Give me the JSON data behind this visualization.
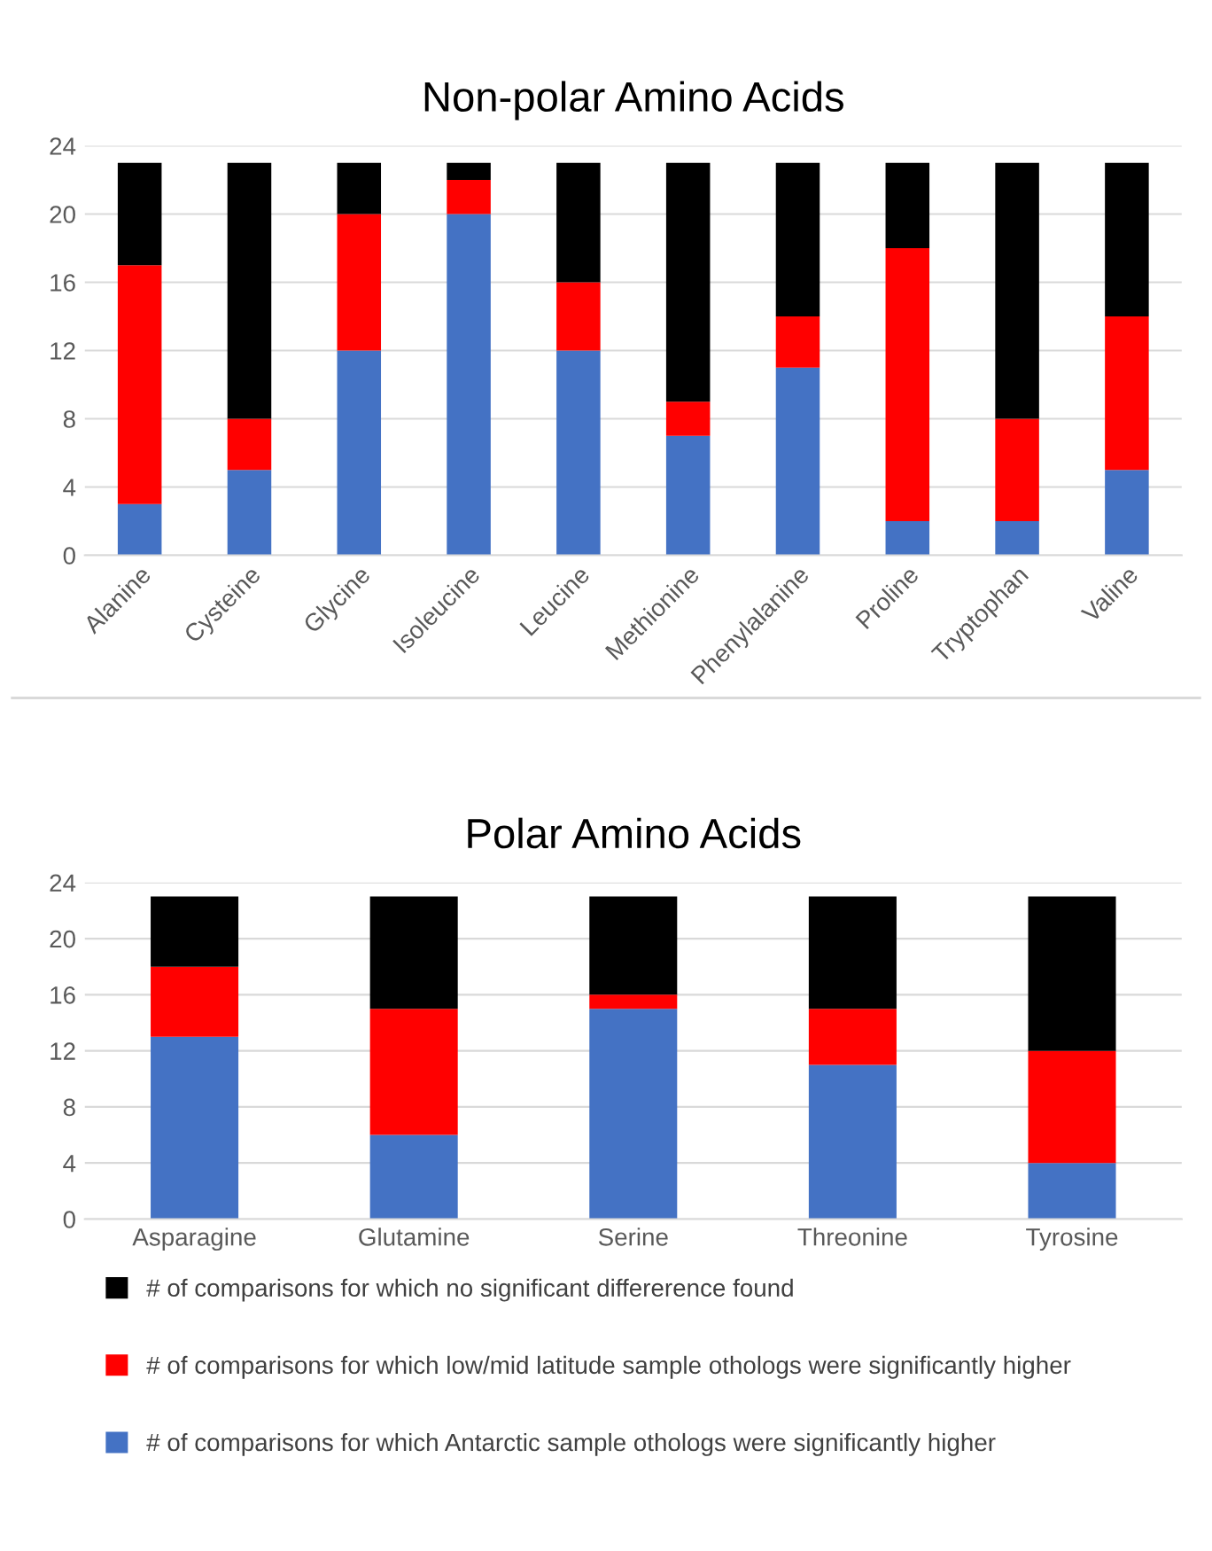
{
  "chart_data": [
    {
      "type": "bar",
      "title": "Non-polar Amino Acids",
      "stacked": true,
      "grid": "y",
      "legend": false,
      "categories": [
        "Alanine",
        "Cysteine",
        "Glycine",
        "Isoleucine",
        "Leucine",
        "Methionine",
        "Phenylalanine",
        "Proline",
        "Tryptophan",
        "Valine"
      ],
      "ylim": [
        0,
        24
      ],
      "yticks": [
        0,
        4,
        8,
        12,
        16,
        20,
        24
      ],
      "series": [
        {
          "color": "#4472c4",
          "values": [
            3,
            5,
            12,
            20,
            12,
            7,
            11,
            2,
            2,
            5
          ]
        },
        {
          "color": "#ff0000",
          "values": [
            14,
            3,
            8,
            2,
            4,
            2,
            3,
            16,
            6,
            9
          ]
        },
        {
          "color": "#000000",
          "values": [
            6,
            15,
            3,
            1,
            7,
            14,
            9,
            5,
            15,
            9
          ]
        }
      ]
    },
    {
      "type": "bar",
      "title": "Polar Amino Acids",
      "stacked": true,
      "grid": "y",
      "legend": "bottom",
      "categories": [
        "Asparagine",
        "Glutamine",
        "Serine",
        "Threonine",
        "Tyrosine"
      ],
      "ylim": [
        0,
        24
      ],
      "yticks": [
        0,
        4,
        8,
        12,
        16,
        20,
        24
      ],
      "series": [
        {
          "name": "# of comparisons for which Antarctic sample othologs were significantly higher",
          "color": "#4472c4",
          "values": [
            13,
            6,
            15,
            11,
            4
          ]
        },
        {
          "name": "# of comparisons for which low/mid latitude sample othologs were significantly higher",
          "color": "#ff0000",
          "values": [
            5,
            9,
            1,
            4,
            8
          ]
        },
        {
          "name": "# of comparisons for which no significant differerence found",
          "color": "#000000",
          "values": [
            5,
            8,
            7,
            8,
            11
          ]
        }
      ]
    }
  ]
}
